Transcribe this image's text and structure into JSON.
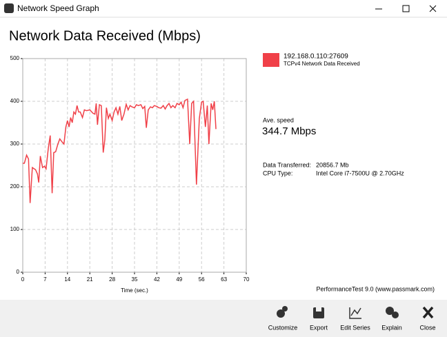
{
  "window": {
    "title": "Network Speed Graph"
  },
  "chart_data": {
    "type": "line",
    "title": "Network Data Received (Mbps)",
    "x_label": "Time (sec.)",
    "x": [
      0,
      0.5,
      1.2,
      1.8,
      2.3,
      3,
      4,
      4.6,
      5,
      5.5,
      6.2,
      6.8,
      7.3,
      8,
      8.6,
      9.2,
      9.7,
      10.3,
      11,
      11.6,
      12.3,
      12.9,
      13.5,
      14,
      14.5,
      15,
      15.5,
      16,
      16.5,
      17,
      17.5,
      18,
      18.7,
      19.3,
      20,
      21,
      22,
      22.6,
      23,
      23.4,
      24,
      24.6,
      25.2,
      25.7,
      26.2,
      26.8,
      27.3,
      28,
      28.6,
      29.2,
      29.8,
      30.4,
      31,
      31.7,
      32.4,
      33,
      33.6,
      34.2,
      35,
      35.6,
      36.2,
      37,
      37.6,
      38.2,
      38.7,
      39.3,
      40,
      40.6,
      41.2,
      42,
      42.6,
      43.3,
      44,
      44.6,
      45.2,
      45.8,
      46.4,
      47,
      47.7,
      48.3,
      49,
      49.6,
      50.2,
      50.8,
      51.6,
      52.3,
      52.9,
      53.5,
      54.4,
      55.3,
      56,
      56.5,
      57.2,
      57.8,
      58.3,
      59,
      59.5,
      60,
      60.5
    ],
    "series": [
      {
        "name": "192.168.0.110:27609",
        "description": "TCPv4 Network Data Received",
        "color": "#f04048",
        "values": [
          255,
          255,
          274,
          265,
          162,
          245,
          240,
          230,
          210,
          272,
          245,
          248,
          242,
          290,
          320,
          185,
          280,
          282,
          300,
          312,
          305,
          300,
          340,
          355,
          340,
          362,
          350,
          375,
          370,
          390,
          375,
          375,
          362,
          380,
          378,
          380,
          372,
          370,
          395,
          345,
          392,
          390,
          280,
          310,
          385,
          360,
          370,
          355,
          375,
          385,
          370,
          388,
          355,
          370,
          393,
          380,
          390,
          387,
          385,
          392,
          390,
          392,
          383,
          388,
          338,
          380,
          387,
          385,
          390,
          388,
          385,
          384,
          390,
          382,
          390,
          395,
          385,
          390,
          385,
          395,
          392,
          398,
          385,
          402,
          405,
          300,
          395,
          400,
          205,
          360,
          398,
          400,
          340,
          390,
          300,
          395,
          380,
          400,
          335
        ]
      }
    ],
    "xlim": [
      0,
      70
    ],
    "xticks": [
      0,
      7,
      14,
      21,
      28,
      35,
      42,
      49,
      56,
      63,
      70
    ],
    "ylim": [
      0,
      500
    ],
    "yticks": [
      0,
      100,
      200,
      300,
      400,
      500
    ],
    "grid": true
  },
  "stats": {
    "avg_label": "Ave. speed",
    "avg_value": "344.7 Mbps",
    "rows": [
      [
        "Data Transferred:",
        "20856.7 Mb"
      ],
      [
        "CPU Type:",
        "Intel Core i7-7500U @ 2.70GHz"
      ]
    ]
  },
  "footer": "PerformanceTest 9.0 (www.passmark.com)",
  "toolbar": [
    "Customize",
    "Export",
    "Edit Series",
    "Explain",
    "Close"
  ]
}
